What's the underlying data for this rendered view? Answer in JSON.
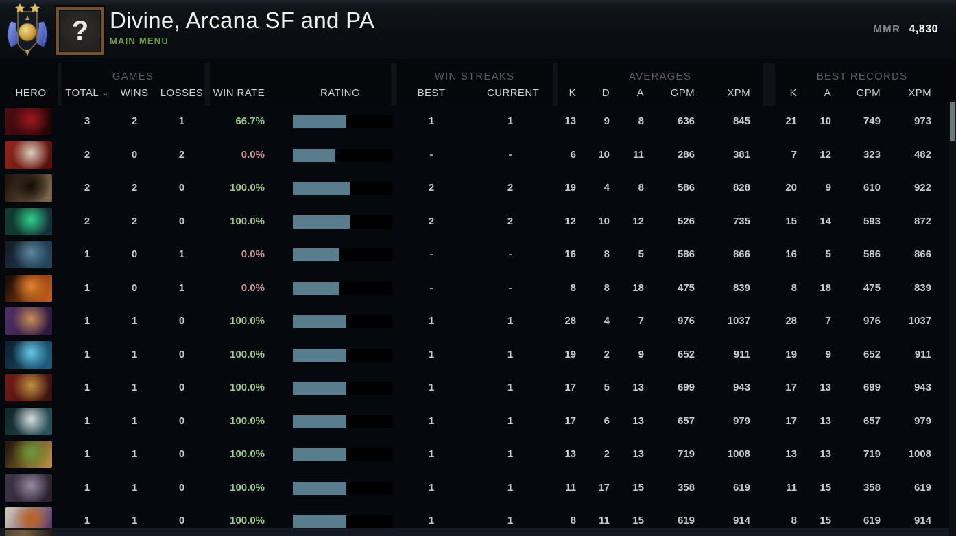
{
  "header": {
    "medal_icon": "divine-rank-medal",
    "avatar_text": "?",
    "title": "Divine, Arcana SF and PA",
    "subtitle": "MAIN MENU",
    "mmr_label": "MMR",
    "mmr_value": "4,830"
  },
  "table": {
    "group_headers": {
      "games": "GAMES",
      "win_streaks": "WIN STREAKS",
      "averages": "AVERAGES",
      "best_records": "BEST RECORDS"
    },
    "columns": {
      "hero": "HERO",
      "total": "TOTAL",
      "sort_indicator": "⌄",
      "wins": "WINS",
      "losses": "LOSSES",
      "win_rate": "WIN RATE",
      "rating": "RATING",
      "best": "BEST",
      "current": "CURRENT",
      "k": "K",
      "d": "D",
      "a": "A",
      "gpm": "GPM",
      "xpm": "XPM",
      "rk": "K",
      "ra": "A",
      "rgpm": "GPM",
      "rxpm": "XPM"
    },
    "rows": [
      {
        "total": "3",
        "wins": "2",
        "losses": "1",
        "win_rate": "66.7%",
        "win_rate_positive": true,
        "rating_pct": 54,
        "best": "1",
        "current": "1",
        "k": "13",
        "d": "9",
        "a": "8",
        "gpm": "636",
        "xpm": "845",
        "rk": "21",
        "ra": "10",
        "rgpm": "749",
        "rxpm": "973",
        "portrait": [
          "#4a0d12",
          "#200406",
          "#a01820"
        ]
      },
      {
        "total": "2",
        "wins": "0",
        "losses": "2",
        "win_rate": "0.0%",
        "win_rate_positive": false,
        "rating_pct": 43,
        "best": "-",
        "current": "-",
        "k": "6",
        "d": "10",
        "a": "11",
        "gpm": "286",
        "xpm": "381",
        "rk": "7",
        "ra": "12",
        "rgpm": "323",
        "rxpm": "482",
        "portrait": [
          "#8e2418",
          "#5a0f0c",
          "#d8cfc0"
        ]
      },
      {
        "total": "2",
        "wins": "2",
        "losses": "0",
        "win_rate": "100.0%",
        "win_rate_positive": true,
        "rating_pct": 57,
        "best": "2",
        "current": "2",
        "k": "19",
        "d": "4",
        "a": "8",
        "gpm": "586",
        "xpm": "828",
        "rk": "20",
        "ra": "9",
        "rgpm": "610",
        "rxpm": "922",
        "portrait": [
          "#241710",
          "#7d6547",
          "#120c08"
        ]
      },
      {
        "total": "2",
        "wins": "2",
        "losses": "0",
        "win_rate": "100.0%",
        "win_rate_positive": true,
        "rating_pct": 57,
        "best": "2",
        "current": "2",
        "k": "12",
        "d": "10",
        "a": "12",
        "gpm": "526",
        "xpm": "735",
        "rk": "15",
        "ra": "14",
        "rgpm": "593",
        "rxpm": "872",
        "portrait": [
          "#0e3b2a",
          "#15333c",
          "#2fcf8e"
        ]
      },
      {
        "total": "1",
        "wins": "0",
        "losses": "1",
        "win_rate": "0.0%",
        "win_rate_positive": false,
        "rating_pct": 47,
        "best": "-",
        "current": "-",
        "k": "16",
        "d": "8",
        "a": "5",
        "gpm": "586",
        "xpm": "866",
        "rk": "16",
        "ra": "5",
        "rgpm": "586",
        "rxpm": "866",
        "portrait": [
          "#13202b",
          "#23455c",
          "#5e86a0"
        ]
      },
      {
        "total": "1",
        "wins": "0",
        "losses": "1",
        "win_rate": "0.0%",
        "win_rate_positive": false,
        "rating_pct": 47,
        "best": "-",
        "current": "-",
        "k": "8",
        "d": "8",
        "a": "18",
        "gpm": "475",
        "xpm": "839",
        "rk": "8",
        "ra": "18",
        "rgpm": "475",
        "rxpm": "839",
        "portrait": [
          "#1f0e06",
          "#c25716",
          "#e2832e"
        ]
      },
      {
        "total": "1",
        "wins": "1",
        "losses": "0",
        "win_rate": "100.0%",
        "win_rate_positive": true,
        "rating_pct": 54,
        "best": "1",
        "current": "1",
        "k": "28",
        "d": "4",
        "a": "7",
        "gpm": "976",
        "xpm": "1037",
        "rk": "28",
        "ra": "7",
        "rgpm": "976",
        "rxpm": "1037",
        "portrait": [
          "#4e2d63",
          "#2d1840",
          "#c78e58"
        ]
      },
      {
        "total": "1",
        "wins": "1",
        "losses": "0",
        "win_rate": "100.0%",
        "win_rate_positive": true,
        "rating_pct": 54,
        "best": "1",
        "current": "1",
        "k": "19",
        "d": "2",
        "a": "9",
        "gpm": "652",
        "xpm": "911",
        "rk": "19",
        "ra": "9",
        "rgpm": "652",
        "rxpm": "911",
        "portrait": [
          "#0d2435",
          "#1d5b7c",
          "#64c8e8"
        ]
      },
      {
        "total": "1",
        "wins": "1",
        "losses": "0",
        "win_rate": "100.0%",
        "win_rate_positive": true,
        "rating_pct": 54,
        "best": "1",
        "current": "1",
        "k": "17",
        "d": "5",
        "a": "13",
        "gpm": "699",
        "xpm": "943",
        "rk": "17",
        "ra": "13",
        "rgpm": "699",
        "rxpm": "943",
        "portrait": [
          "#6e1a14",
          "#3a1410",
          "#c29140"
        ]
      },
      {
        "total": "1",
        "wins": "1",
        "losses": "0",
        "win_rate": "100.0%",
        "win_rate_positive": true,
        "rating_pct": 54,
        "best": "1",
        "current": "1",
        "k": "17",
        "d": "6",
        "a": "13",
        "gpm": "657",
        "xpm": "979",
        "rk": "17",
        "ra": "13",
        "rgpm": "657",
        "rxpm": "979",
        "portrait": [
          "#12282c",
          "#27545c",
          "#d8dde0"
        ]
      },
      {
        "total": "1",
        "wins": "1",
        "losses": "0",
        "win_rate": "100.0%",
        "win_rate_positive": true,
        "rating_pct": 54,
        "best": "1",
        "current": "1",
        "k": "13",
        "d": "2",
        "a": "13",
        "gpm": "719",
        "xpm": "1008",
        "rk": "13",
        "ra": "13",
        "rgpm": "719",
        "rxpm": "1008",
        "portrait": [
          "#2a1d0c",
          "#b4893a",
          "#6a9a3a"
        ]
      },
      {
        "total": "1",
        "wins": "1",
        "losses": "0",
        "win_rate": "100.0%",
        "win_rate_positive": true,
        "rating_pct": 54,
        "best": "1",
        "current": "1",
        "k": "11",
        "d": "17",
        "a": "15",
        "gpm": "358",
        "xpm": "619",
        "rk": "11",
        "ra": "15",
        "rgpm": "358",
        "rxpm": "619",
        "portrait": [
          "#3c3344",
          "#2a2230",
          "#978aa2"
        ]
      },
      {
        "total": "1",
        "wins": "1",
        "losses": "0",
        "win_rate": "100.0%",
        "win_rate_positive": true,
        "rating_pct": 54,
        "best": "1",
        "current": "1",
        "k": "8",
        "d": "11",
        "a": "15",
        "gpm": "619",
        "xpm": "914",
        "rk": "8",
        "ra": "15",
        "rgpm": "619",
        "rxpm": "914",
        "portrait": [
          "#c8beb0",
          "#5a3a66",
          "#c2601c"
        ]
      }
    ]
  },
  "colors": {
    "win_green": "#9dc78c",
    "loss_red": "#cb9595",
    "rating_fill": "#587e8e",
    "rating_track": "#000000",
    "accent_green": "#6f9c44",
    "scrollbar_thumb": "#6d7a77"
  }
}
